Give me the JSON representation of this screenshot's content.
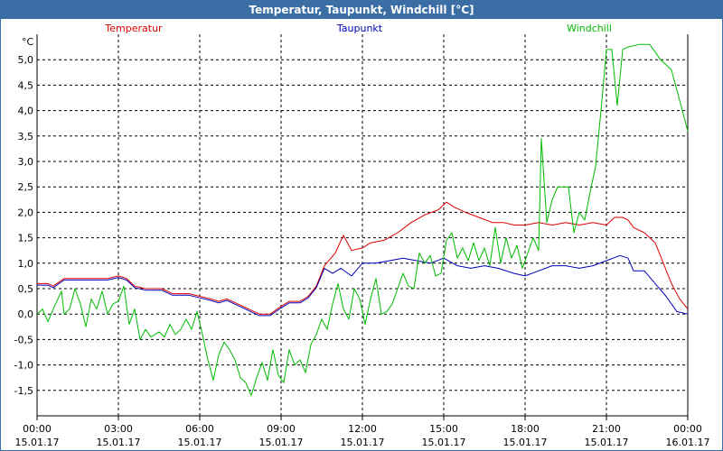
{
  "window": {
    "title": "Temperatur, Taupunkt, Windchill [°C]"
  },
  "chart_data": {
    "type": "line",
    "title": "Temperatur, Taupunkt, Windchill [°C]",
    "ylabel": "°C",
    "xlabel": "",
    "ylim": [
      -2.0,
      5.5
    ],
    "xlim": [
      0,
      24
    ],
    "grid": true,
    "legend_position": "top",
    "y_ticks": [
      "-1,5",
      "-1,0",
      "-0,5",
      "0,0",
      "0,5",
      "1,0",
      "1,5",
      "2,0",
      "2,5",
      "3,0",
      "3,5",
      "4,0",
      "4,5",
      "5,0"
    ],
    "y_tick_values": [
      -1.5,
      -1.0,
      -0.5,
      0.0,
      0.5,
      1.0,
      1.5,
      2.0,
      2.5,
      3.0,
      3.5,
      4.0,
      4.5,
      5.0
    ],
    "x_ticks": [
      {
        "time": "00:00",
        "date": "15.01.17",
        "h": 0
      },
      {
        "time": "03:00",
        "date": "15.01.17",
        "h": 3
      },
      {
        "time": "06:00",
        "date": "15.01.17",
        "h": 6
      },
      {
        "time": "09:00",
        "date": "15.01.17",
        "h": 9
      },
      {
        "time": "12:00",
        "date": "15.01.17",
        "h": 12
      },
      {
        "time": "15:00",
        "date": "15.01.17",
        "h": 15
      },
      {
        "time": "18:00",
        "date": "15.01.17",
        "h": 18
      },
      {
        "time": "21:00",
        "date": "15.01.17",
        "h": 21
      },
      {
        "time": "00:00",
        "date": "16.01.17",
        "h": 24
      }
    ],
    "series": [
      {
        "name": "Temperatur",
        "color": "#dd0000",
        "points": [
          [
            0,
            0.6
          ],
          [
            0.4,
            0.6
          ],
          [
            0.6,
            0.55
          ],
          [
            1,
            0.7
          ],
          [
            1.6,
            0.7
          ],
          [
            2,
            0.7
          ],
          [
            2.6,
            0.7
          ],
          [
            3,
            0.75
          ],
          [
            3.3,
            0.7
          ],
          [
            3.6,
            0.55
          ],
          [
            4,
            0.5
          ],
          [
            4.6,
            0.5
          ],
          [
            5,
            0.4
          ],
          [
            5.6,
            0.4
          ],
          [
            6,
            0.35
          ],
          [
            6.4,
            0.3
          ],
          [
            6.7,
            0.25
          ],
          [
            7,
            0.3
          ],
          [
            7.4,
            0.2
          ],
          [
            7.8,
            0.1
          ],
          [
            8.2,
            0.0
          ],
          [
            8.6,
            0.0
          ],
          [
            9,
            0.15
          ],
          [
            9.3,
            0.25
          ],
          [
            9.7,
            0.25
          ],
          [
            10,
            0.35
          ],
          [
            10.3,
            0.55
          ],
          [
            10.6,
            0.95
          ],
          [
            11,
            1.2
          ],
          [
            11.3,
            1.55
          ],
          [
            11.6,
            1.25
          ],
          [
            12,
            1.3
          ],
          [
            12.3,
            1.4
          ],
          [
            12.8,
            1.45
          ],
          [
            13.3,
            1.6
          ],
          [
            13.8,
            1.8
          ],
          [
            14.3,
            1.95
          ],
          [
            14.8,
            2.05
          ],
          [
            15.1,
            2.2
          ],
          [
            15.4,
            2.1
          ],
          [
            15.8,
            2.0
          ],
          [
            16.3,
            1.9
          ],
          [
            16.8,
            1.8
          ],
          [
            17.2,
            1.8
          ],
          [
            17.6,
            1.75
          ],
          [
            18,
            1.75
          ],
          [
            18.5,
            1.8
          ],
          [
            19,
            1.75
          ],
          [
            19.5,
            1.8
          ],
          [
            20,
            1.75
          ],
          [
            20.5,
            1.8
          ],
          [
            21,
            1.75
          ],
          [
            21.3,
            1.9
          ],
          [
            21.6,
            1.9
          ],
          [
            21.8,
            1.85
          ],
          [
            22,
            1.7
          ],
          [
            22.4,
            1.6
          ],
          [
            22.8,
            1.4
          ],
          [
            23.1,
            1.0
          ],
          [
            23.4,
            0.6
          ],
          [
            23.7,
            0.3
          ],
          [
            24,
            0.1
          ]
        ]
      },
      {
        "name": "Taupunkt",
        "color": "#0000bb",
        "points": [
          [
            0,
            0.57
          ],
          [
            0.4,
            0.57
          ],
          [
            0.6,
            0.52
          ],
          [
            1,
            0.67
          ],
          [
            1.6,
            0.67
          ],
          [
            2,
            0.67
          ],
          [
            2.6,
            0.67
          ],
          [
            3,
            0.72
          ],
          [
            3.3,
            0.67
          ],
          [
            3.6,
            0.52
          ],
          [
            4,
            0.47
          ],
          [
            4.6,
            0.47
          ],
          [
            5,
            0.37
          ],
          [
            5.6,
            0.37
          ],
          [
            6,
            0.32
          ],
          [
            6.4,
            0.27
          ],
          [
            6.7,
            0.22
          ],
          [
            7,
            0.27
          ],
          [
            7.4,
            0.17
          ],
          [
            7.8,
            0.07
          ],
          [
            8.2,
            -0.03
          ],
          [
            8.6,
            -0.03
          ],
          [
            9,
            0.12
          ],
          [
            9.3,
            0.22
          ],
          [
            9.7,
            0.22
          ],
          [
            10,
            0.32
          ],
          [
            10.3,
            0.52
          ],
          [
            10.6,
            0.9
          ],
          [
            10.9,
            0.8
          ],
          [
            11.2,
            0.9
          ],
          [
            11.6,
            0.75
          ],
          [
            12,
            1.0
          ],
          [
            12.5,
            1.0
          ],
          [
            13,
            1.05
          ],
          [
            13.5,
            1.1
          ],
          [
            14,
            1.05
          ],
          [
            14.5,
            1.0
          ],
          [
            15,
            1.1
          ],
          [
            15.5,
            0.95
          ],
          [
            16,
            0.9
          ],
          [
            16.5,
            0.95
          ],
          [
            17,
            0.9
          ],
          [
            17.6,
            0.8
          ],
          [
            18,
            0.75
          ],
          [
            18.5,
            0.85
          ],
          [
            19,
            0.95
          ],
          [
            19.5,
            0.95
          ],
          [
            20,
            0.9
          ],
          [
            20.5,
            0.95
          ],
          [
            21,
            1.05
          ],
          [
            21.5,
            1.15
          ],
          [
            21.8,
            1.1
          ],
          [
            22,
            0.85
          ],
          [
            22.4,
            0.85
          ],
          [
            22.8,
            0.6
          ],
          [
            23.2,
            0.35
          ],
          [
            23.6,
            0.05
          ],
          [
            24,
            0.0
          ]
        ]
      },
      {
        "name": "Windchill",
        "color": "#00bb00",
        "points": [
          [
            0,
            0.0
          ],
          [
            0.2,
            0.1
          ],
          [
            0.4,
            -0.15
          ],
          [
            0.6,
            0.1
          ],
          [
            0.9,
            0.45
          ],
          [
            1,
            0.0
          ],
          [
            1.2,
            0.1
          ],
          [
            1.4,
            0.5
          ],
          [
            1.6,
            0.2
          ],
          [
            1.8,
            -0.25
          ],
          [
            2,
            0.3
          ],
          [
            2.2,
            0.1
          ],
          [
            2.4,
            0.45
          ],
          [
            2.6,
            0.0
          ],
          [
            2.8,
            0.2
          ],
          [
            3,
            0.25
          ],
          [
            3.2,
            0.55
          ],
          [
            3.4,
            -0.2
          ],
          [
            3.6,
            0.1
          ],
          [
            3.8,
            -0.5
          ],
          [
            4,
            -0.3
          ],
          [
            4.2,
            -0.45
          ],
          [
            4.5,
            -0.35
          ],
          [
            4.7,
            -0.45
          ],
          [
            4.9,
            -0.2
          ],
          [
            5.1,
            -0.4
          ],
          [
            5.3,
            -0.3
          ],
          [
            5.5,
            -0.1
          ],
          [
            5.7,
            -0.3
          ],
          [
            5.9,
            0.05
          ],
          [
            6.1,
            -0.4
          ],
          [
            6.3,
            -0.9
          ],
          [
            6.5,
            -1.3
          ],
          [
            6.7,
            -0.8
          ],
          [
            6.9,
            -0.55
          ],
          [
            7.1,
            -0.7
          ],
          [
            7.3,
            -0.9
          ],
          [
            7.5,
            -1.25
          ],
          [
            7.7,
            -1.35
          ],
          [
            7.9,
            -1.6
          ],
          [
            8.1,
            -1.25
          ],
          [
            8.3,
            -0.95
          ],
          [
            8.5,
            -1.3
          ],
          [
            8.7,
            -0.7
          ],
          [
            8.9,
            -1.2
          ],
          [
            9.1,
            -1.35
          ],
          [
            9.3,
            -0.7
          ],
          [
            9.5,
            -1.0
          ],
          [
            9.7,
            -0.9
          ],
          [
            9.9,
            -1.15
          ],
          [
            10.1,
            -0.6
          ],
          [
            10.3,
            -0.4
          ],
          [
            10.5,
            -0.1
          ],
          [
            10.7,
            -0.3
          ],
          [
            10.9,
            0.2
          ],
          [
            11.1,
            0.6
          ],
          [
            11.3,
            0.1
          ],
          [
            11.5,
            -0.1
          ],
          [
            11.7,
            0.5
          ],
          [
            11.9,
            0.3
          ],
          [
            12.1,
            -0.2
          ],
          [
            12.3,
            0.3
          ],
          [
            12.5,
            0.7
          ],
          [
            12.7,
            0.0
          ],
          [
            12.9,
            0.05
          ],
          [
            13.1,
            0.2
          ],
          [
            13.3,
            0.5
          ],
          [
            13.5,
            0.8
          ],
          [
            13.7,
            0.55
          ],
          [
            13.9,
            0.5
          ],
          [
            14.1,
            1.2
          ],
          [
            14.3,
            1.0
          ],
          [
            14.5,
            1.15
          ],
          [
            14.7,
            0.75
          ],
          [
            14.9,
            0.8
          ],
          [
            15.1,
            1.45
          ],
          [
            15.3,
            1.6
          ],
          [
            15.5,
            1.1
          ],
          [
            15.7,
            1.3
          ],
          [
            15.9,
            1.05
          ],
          [
            16.1,
            1.4
          ],
          [
            16.3,
            1.05
          ],
          [
            16.5,
            1.3
          ],
          [
            16.7,
            0.95
          ],
          [
            16.9,
            1.7
          ],
          [
            17.1,
            1.0
          ],
          [
            17.3,
            1.5
          ],
          [
            17.5,
            1.1
          ],
          [
            17.7,
            1.35
          ],
          [
            17.9,
            0.9
          ],
          [
            18.1,
            1.2
          ],
          [
            18.3,
            1.5
          ],
          [
            18.5,
            1.25
          ],
          [
            18.6,
            3.45
          ],
          [
            18.8,
            1.8
          ],
          [
            19.0,
            2.25
          ],
          [
            19.2,
            2.5
          ],
          [
            19.4,
            2.5
          ],
          [
            19.6,
            2.5
          ],
          [
            19.8,
            1.6
          ],
          [
            20.0,
            2.0
          ],
          [
            20.2,
            1.85
          ],
          [
            20.4,
            2.4
          ],
          [
            20.6,
            2.9
          ],
          [
            20.8,
            4.0
          ],
          [
            21.0,
            5.2
          ],
          [
            21.2,
            5.2
          ],
          [
            21.4,
            4.1
          ],
          [
            21.6,
            5.2
          ],
          [
            21.8,
            5.25
          ],
          [
            22.2,
            5.3
          ],
          [
            22.6,
            5.3
          ],
          [
            23.0,
            5.0
          ],
          [
            23.4,
            4.8
          ],
          [
            23.8,
            4.0
          ],
          [
            24.0,
            3.6
          ]
        ]
      }
    ]
  }
}
